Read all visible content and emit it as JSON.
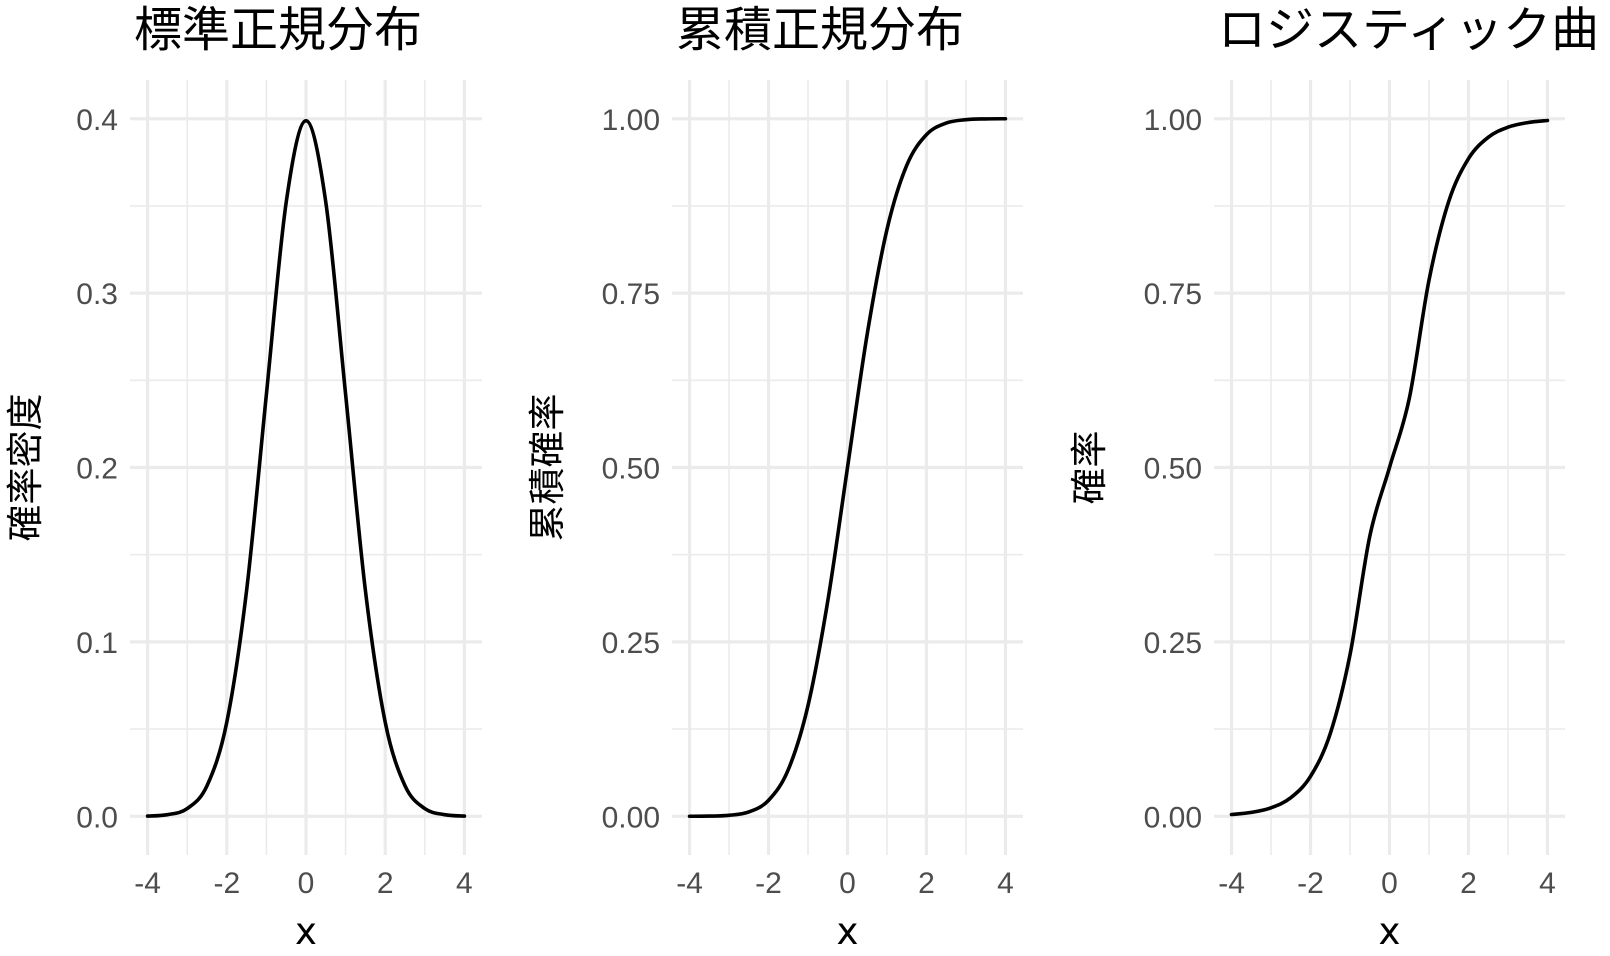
{
  "chart_data": [
    {
      "type": "line",
      "title": "標準正規分布",
      "xlabel": "x",
      "ylabel": "確率密度",
      "xlim": [
        -4,
        4
      ],
      "ylim": [
        0,
        0.4
      ],
      "x_ticks": [
        -4,
        -2,
        0,
        2,
        4
      ],
      "y_ticks": [
        0.0,
        0.1,
        0.2,
        0.3,
        0.4
      ],
      "y_tick_labels": [
        "0.0",
        "0.1",
        "0.2",
        "0.3",
        "0.4"
      ],
      "grid": true,
      "series": [
        {
          "x": [
            -4,
            -3.5,
            -3,
            -2.5,
            -2,
            -1.5,
            -1,
            -0.5,
            0,
            0.5,
            1,
            1.5,
            2,
            2.5,
            3,
            3.5,
            4
          ],
          "values": [
            0.0001,
            0.0009,
            0.0044,
            0.0175,
            0.054,
            0.1295,
            0.242,
            0.3521,
            0.3989,
            0.3521,
            0.242,
            0.1295,
            0.054,
            0.0175,
            0.0044,
            0.0009,
            0.0001
          ]
        }
      ]
    },
    {
      "type": "line",
      "title": "累積正規分布",
      "xlabel": "x",
      "ylabel": "累積確率",
      "xlim": [
        -4,
        4
      ],
      "ylim": [
        0,
        1
      ],
      "x_ticks": [
        -4,
        -2,
        0,
        2,
        4
      ],
      "y_ticks": [
        0,
        0.25,
        0.5,
        0.75,
        1
      ],
      "y_tick_labels": [
        "0.00",
        "0.25",
        "0.50",
        "0.75",
        "1.00"
      ],
      "grid": true,
      "series": [
        {
          "x": [
            -4,
            -3.5,
            -3,
            -2.5,
            -2,
            -1.5,
            -1,
            -0.5,
            0,
            0.5,
            1,
            1.5,
            2,
            2.5,
            3,
            3.5,
            4
          ],
          "values": [
            0.0,
            0.0002,
            0.0013,
            0.0062,
            0.0228,
            0.0668,
            0.1587,
            0.3085,
            0.5,
            0.6915,
            0.8413,
            0.9332,
            0.9772,
            0.9938,
            0.9987,
            0.9998,
            1.0
          ]
        }
      ]
    },
    {
      "type": "line",
      "title": "ロジスティック曲",
      "xlabel": "x",
      "ylabel": "確率",
      "xlim": [
        -4,
        4
      ],
      "ylim": [
        0,
        1
      ],
      "x_ticks": [
        -4,
        -2,
        0,
        2,
        4
      ],
      "y_ticks": [
        0,
        0.25,
        0.5,
        0.75,
        1
      ],
      "y_tick_labels": [
        "0.00",
        "0.25",
        "0.50",
        "0.75",
        "1.00"
      ],
      "grid": true,
      "series": [
        {
          "x": [
            -4,
            -3.5,
            -3,
            -2.5,
            -2,
            -1.5,
            -1,
            -0.5,
            0,
            0.5,
            1,
            1.5,
            2,
            2.5,
            3,
            3.5,
            4
          ],
          "values": [
            0.0025,
            0.0055,
            0.0121,
            0.0266,
            0.0572,
            0.1185,
            0.2315,
            0.4013,
            0.5,
            0.5987,
            0.7685,
            0.8815,
            0.9428,
            0.9734,
            0.9879,
            0.9945,
            0.9975
          ]
        }
      ]
    }
  ]
}
